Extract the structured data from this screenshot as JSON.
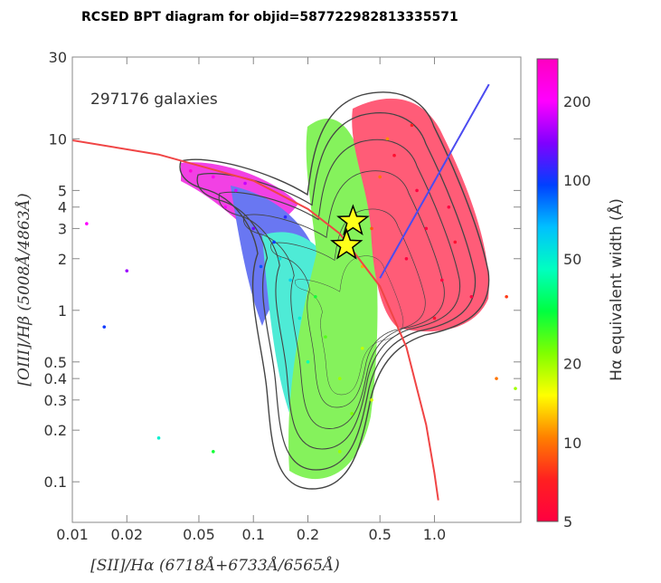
{
  "chart_data": {
    "type": "scatter",
    "title": "RCSED BPT diagram for objid=587722982813335571",
    "annotation": "297176 galaxies",
    "x_label": "[SII]/Hα (6718Å+6733Å/6565Å)",
    "y_label": "[OIII]/Hβ (5008Å/4863Å)",
    "log_x": true,
    "log_y": true,
    "xlim": [
      0.01,
      3
    ],
    "ylim": [
      0.058,
      30
    ],
    "xticks": [
      0.01,
      0.02,
      0.05,
      0.1,
      0.2,
      0.5,
      {
        "value": 1,
        "label": "1.0"
      }
    ],
    "yticks": [
      0.1,
      0.2,
      0.3,
      0.4,
      0.5,
      1,
      2,
      3,
      4,
      5,
      10,
      30
    ],
    "series": [
      {
        "x": [
          0.7,
          0.9,
          1.1,
          0.8,
          1.3,
          0.6,
          1.6,
          1.0,
          0.75,
          1.2,
          0.45,
          0.5,
          0.4,
          0.55,
          0.3,
          0.35,
          0.25,
          0.4,
          0.3,
          0.22,
          0.45,
          0.18,
          0.16,
          0.2,
          0.14,
          0.13,
          0.15,
          0.11,
          0.1,
          0.08,
          0.06,
          0.045,
          0.07,
          0.09,
          0.012,
          0.015,
          0.03,
          0.06,
          2.2,
          2.5,
          2.8,
          0.02
        ],
        "y": [
          2,
          3,
          1.5,
          5,
          2.5,
          8,
          1.2,
          0.9,
          12,
          4,
          3,
          6,
          1.8,
          10,
          0.4,
          0.25,
          0.7,
          0.6,
          0.15,
          1.2,
          0.3,
          0.9,
          1.5,
          0.5,
          2,
          2.5,
          3.5,
          1.8,
          3,
          5,
          6,
          6.5,
          4,
          5.5,
          3.2,
          0.8,
          0.18,
          0.15,
          0.4,
          1.2,
          0.35,
          1.7
        ],
        "ew": [
          5,
          5,
          5,
          5,
          6,
          6,
          5,
          6,
          7,
          5,
          9,
          10,
          12,
          11,
          20,
          22,
          25,
          18,
          20,
          30,
          17,
          50,
          60,
          45,
          55,
          100,
          110,
          90,
          130,
          180,
          220,
          250,
          200,
          170,
          200,
          100,
          50,
          30,
          10,
          8,
          20,
          150
        ]
      }
    ],
    "highlight": {
      "x": [
        0.355,
        0.327
      ],
      "y": [
        3.3,
        2.39
      ],
      "color": "#ffff1a"
    },
    "curves": [
      {
        "color": "#f04545",
        "x": [
          0.01,
          0.03,
          0.1,
          0.2,
          0.3,
          0.5,
          0.7,
          0.9,
          1.0,
          1.05
        ],
        "y": [
          9.8,
          8.1,
          5.7,
          3.9,
          2.8,
          1.38,
          0.61,
          0.215,
          0.112,
          0.078
        ]
      },
      {
        "color": "#4b4bf0",
        "x": [
          0.5,
          2.0
        ],
        "y": [
          1.54,
          20.8
        ]
      }
    ],
    "colorbar": {
      "label": "Hα equivalent width (Å)",
      "lim": [
        5,
        290
      ],
      "ticks": [
        5,
        10,
        20,
        50,
        100,
        200
      ],
      "colors": [
        "#ff0040",
        "#ff2020",
        "#ff8000",
        "#ffff00",
        "#80ff00",
        "#00ff40",
        "#00ffc0",
        "#00c0ff",
        "#0040ff",
        "#8000ff",
        "#ff00ff",
        "#ff00c0"
      ]
    }
  }
}
